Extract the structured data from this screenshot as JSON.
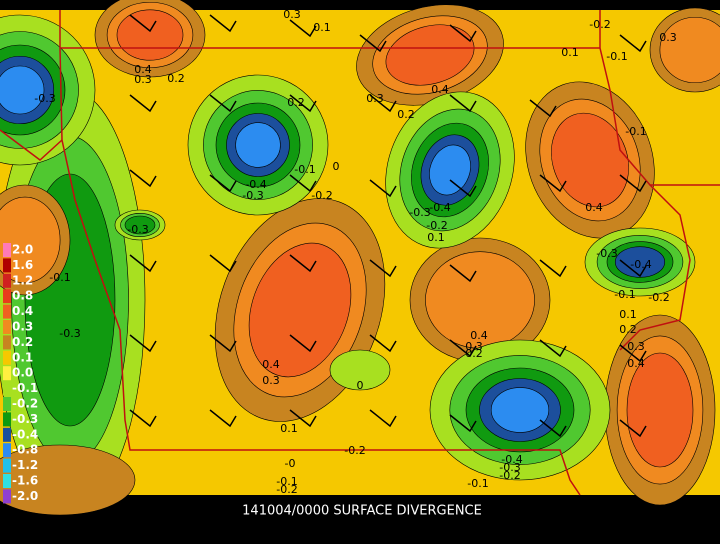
{
  "caption": "141004/0000 SURFACE DIVERGENCE",
  "legend": [
    {
      "label": "2.0",
      "color": "#ff7ab8"
    },
    {
      "label": "1.6",
      "color": "#b00000"
    },
    {
      "label": "1.2",
      "color": "#d02020"
    },
    {
      "label": "0.8",
      "color": "#e83c1c"
    },
    {
      "label": "0.4",
      "color": "#f06020"
    },
    {
      "label": "0.3",
      "color": "#f08a20"
    },
    {
      "label": "0.2",
      "color": "#c88420"
    },
    {
      "label": "0.1",
      "color": "#f5c800"
    },
    {
      "label": "0.0",
      "color": "#ffef40"
    },
    {
      "label": "-0.1",
      "color": "#a8e020"
    },
    {
      "label": "-0.2",
      "color": "#50c830"
    },
    {
      "label": "-0.3",
      "color": "#109a10"
    },
    {
      "label": "-0.4",
      "color": "#1c4f9c"
    },
    {
      "label": "-0.8",
      "color": "#2c8cf0"
    },
    {
      "label": "-1.2",
      "color": "#20c0e8"
    },
    {
      "label": "-1.6",
      "color": "#30e0e0"
    },
    {
      "label": "-2.0",
      "color": "#9040d0"
    }
  ],
  "contour_labels": [
    "0.3",
    "0.1",
    "0.4",
    "0.3",
    "0.2",
    "-0.3",
    "0.3",
    "0.2",
    "0.4",
    "0.2",
    "-0.1",
    "0",
    "-0.4",
    "-0.3",
    "-0.2",
    "-0.3",
    "-0.4",
    "-0.3",
    "-0.2",
    "0.1",
    "0.4",
    "0.1",
    "-0.2",
    "0.3",
    "-0.1",
    "-0.1",
    "-0.3",
    "-0.4",
    "-0.1",
    "-0.2",
    "0.1",
    "0.2",
    "0.3",
    "0.4",
    "0.4",
    "0.3",
    "0.2",
    "-0.3",
    "0.4",
    "0.3",
    "0",
    "0.1",
    "-0.2",
    "-0",
    "-0.1",
    "-0.2",
    "-0.4",
    "-0.3",
    "-0.2",
    "-0.1",
    "-0.1"
  ]
}
